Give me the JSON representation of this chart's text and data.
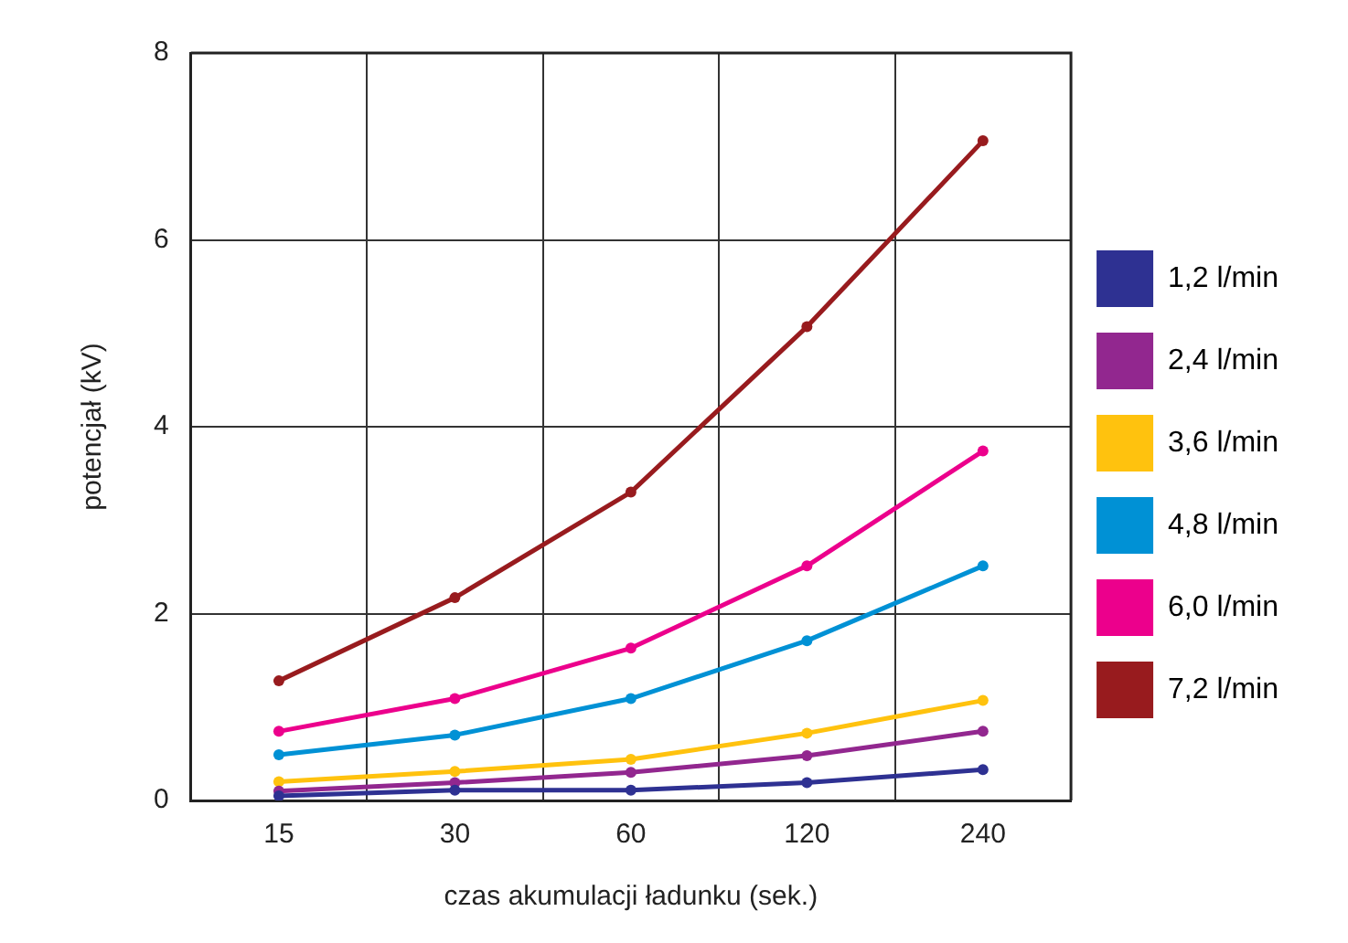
{
  "chart_data": {
    "type": "line",
    "xlabel": "czas akumulacji ładunku (sek.)",
    "ylabel": "potencjał (kV)",
    "categories": [
      "15",
      "30",
      "60",
      "120",
      "240"
    ],
    "ylim": [
      0,
      8
    ],
    "yticks": [
      0,
      2,
      4,
      6,
      8
    ],
    "grid": true,
    "legend": "right",
    "marker": "circle",
    "series": [
      {
        "name": "1,2 l/min",
        "color": "#2e3192",
        "values": [
          0.05,
          0.11,
          0.11,
          0.19,
          0.33
        ]
      },
      {
        "name": "2,4 l/min",
        "color": "#92278f",
        "values": [
          0.1,
          0.19,
          0.3,
          0.48,
          0.74
        ]
      },
      {
        "name": "3,6 l/min",
        "color": "#ffc20e",
        "values": [
          0.2,
          0.31,
          0.44,
          0.72,
          1.07
        ]
      },
      {
        "name": "4,8 l/min",
        "color": "#0091d5",
        "values": [
          0.49,
          0.7,
          1.09,
          1.71,
          2.51
        ]
      },
      {
        "name": "6,0 l/min",
        "color": "#ec008c",
        "values": [
          0.74,
          1.09,
          1.63,
          2.51,
          3.74
        ]
      },
      {
        "name": "7,2 l/min",
        "color": "#981b1e",
        "values": [
          1.28,
          2.17,
          3.3,
          5.07,
          7.06
        ]
      }
    ]
  }
}
